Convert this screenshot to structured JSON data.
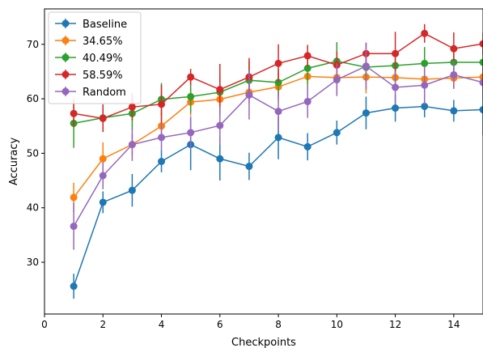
{
  "chart_data": {
    "type": "line",
    "xlabel": "Checkpoints",
    "ylabel": "Accuracy",
    "xlim": [
      0,
      15
    ],
    "ylim": [
      20.5,
      76.5
    ],
    "xticks": [
      0,
      2,
      4,
      6,
      8,
      10,
      12,
      14
    ],
    "yticks": [
      30,
      40,
      50,
      60,
      70
    ],
    "grid": false,
    "legend": "top-left",
    "x": [
      1,
      2,
      3,
      4,
      5,
      6,
      7,
      8,
      9,
      10,
      11,
      12,
      13,
      14,
      15
    ],
    "series": [
      {
        "name": "Baseline",
        "color": "#1f77b4",
        "values": [
          25.6,
          41.0,
          43.2,
          48.5,
          51.6,
          49.0,
          47.6,
          52.9,
          51.2,
          53.8,
          57.4,
          58.3,
          58.6,
          57.8,
          58.0
        ],
        "errors": [
          2.3,
          2.0,
          3.0,
          2.0,
          4.7,
          4.0,
          2.5,
          4.0,
          2.5,
          2.2,
          3.0,
          2.5,
          2.0,
          2.0,
          4.7
        ]
      },
      {
        "name": "34.65%",
        "color": "#ff7f0e",
        "values": [
          41.9,
          49.0,
          51.6,
          55.0,
          59.4,
          59.9,
          61.2,
          62.2,
          64.1,
          63.9,
          64.0,
          63.9,
          63.6,
          63.8,
          64.0
        ],
        "errors": [
          2.7,
          3.0,
          2.0,
          2.7,
          2.5,
          2.5,
          2.0,
          2.5,
          3.5,
          3.0,
          3.0,
          2.0,
          2.0,
          2.0,
          2.0
        ]
      },
      {
        "name": "40.49%",
        "color": "#2ca02c",
        "values": [
          55.5,
          56.5,
          57.3,
          59.9,
          60.4,
          61.2,
          63.4,
          63.0,
          65.6,
          66.9,
          65.8,
          66.1,
          66.5,
          66.7,
          66.7
        ],
        "errors": [
          4.5,
          2.5,
          3.0,
          3.0,
          3.0,
          3.0,
          3.5,
          2.5,
          3.0,
          3.5,
          2.5,
          3.0,
          3.0,
          3.0,
          3.0
        ]
      },
      {
        "name": "58.59%",
        "color": "#d62728",
        "values": [
          57.3,
          56.4,
          58.5,
          59.0,
          64.0,
          61.7,
          64.0,
          66.5,
          67.9,
          66.2,
          68.3,
          68.3,
          72.0,
          69.2,
          70.1
        ],
        "errors": [
          2.5,
          2.5,
          2.5,
          3.5,
          1.5,
          4.7,
          3.5,
          3.5,
          2.0,
          2.5,
          2.0,
          4.0,
          1.7,
          3.0,
          2.0
        ]
      },
      {
        "name": "Random",
        "color": "#9467bd",
        "values": [
          36.6,
          45.9,
          51.6,
          52.9,
          53.8,
          55.1,
          60.7,
          57.7,
          59.5,
          63.5,
          66.0,
          62.1,
          62.5,
          64.4,
          63.0
        ],
        "errors": [
          4.3,
          2.5,
          3.0,
          2.5,
          3.0,
          3.5,
          4.5,
          3.5,
          3.0,
          3.0,
          4.3,
          3.0,
          3.5,
          2.5,
          3.0
        ]
      }
    ]
  }
}
